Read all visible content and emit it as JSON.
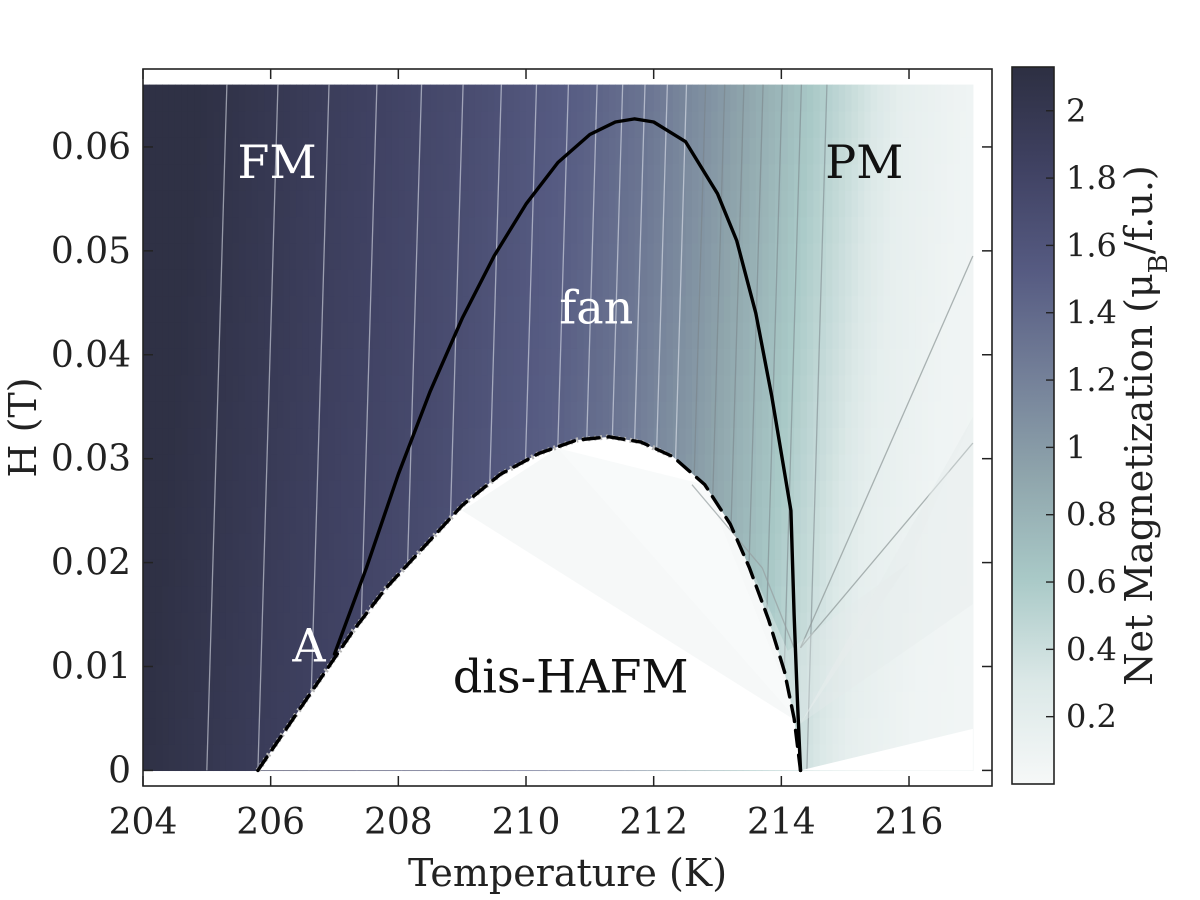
{
  "chart_data": {
    "type": "heatmap",
    "title": "",
    "xlabel": "Temperature (K)",
    "ylabel": "H (T)",
    "xlim": [
      204,
      217.3
    ],
    "ylim": [
      -0.0015,
      0.0675
    ],
    "data_extent": {
      "x": [
        204,
        217
      ],
      "y": [
        0,
        0.066
      ]
    },
    "x_ticks": [
      204,
      206,
      208,
      210,
      212,
      214,
      216
    ],
    "x_tick_labels": [
      "204",
      "206",
      "208",
      "210",
      "212",
      "214",
      "216"
    ],
    "y_ticks": [
      0,
      0.01,
      0.02,
      0.03,
      0.04,
      0.05,
      0.06
    ],
    "y_tick_labels": [
      "0",
      "0.01",
      "0.02",
      "0.03",
      "0.04",
      "0.05",
      "0.06"
    ],
    "grid": false,
    "colorbar": {
      "label": "Net Magnetization (μ",
      "label_sub": "B",
      "label_tail": "/f.u.)",
      "range": [
        0,
        2.13
      ],
      "ticks": [
        0.2,
        0.4,
        0.6,
        0.8,
        1,
        1.2,
        1.4,
        1.6,
        1.8,
        2
      ],
      "tick_labels": [
        "0.2",
        "0.4",
        "0.6",
        "0.8",
        "1",
        "1.2",
        "1.4",
        "1.6",
        "1.8",
        "2"
      ],
      "colormap": [
        "#f6f8f8",
        "#dbe8e7",
        "#a9c9c7",
        "#8fa5ac",
        "#737f98",
        "#565b82",
        "#404263",
        "#2d2f42"
      ]
    },
    "magnetization_model": {
      "T_points": [
        204,
        206,
        208,
        210,
        211,
        212,
        213,
        214,
        215,
        216,
        217
      ],
      "M_at_zero_field": [
        2.1,
        1.9,
        1.72,
        1.48,
        1.3,
        1.05,
        0.78,
        0.48,
        0.18,
        0.08,
        0.05
      ],
      "field_slope_K_per_T": 14
    },
    "regions": [
      {
        "name": "FM",
        "label": "FM",
        "x": 206.1,
        "y": 0.057,
        "color": "#ffffff"
      },
      {
        "name": "PM",
        "label": "PM",
        "x": 215.3,
        "y": 0.057,
        "color": "#111111"
      },
      {
        "name": "fan",
        "label": "fan",
        "x": 211.1,
        "y": 0.043,
        "color": "#ffffff"
      },
      {
        "name": "dis-HAFM",
        "label": "dis-HAFM",
        "x": 210.7,
        "y": 0.0075,
        "color": "#111111"
      },
      {
        "name": "A",
        "label": "A",
        "x": 206.6,
        "y": 0.0105,
        "color": "#ffffff"
      }
    ],
    "series": [
      {
        "id": "fan-boundary",
        "style": "solid",
        "color": "#000000",
        "points": [
          [
            207.0,
            0.0112
          ],
          [
            207.5,
            0.0195
          ],
          [
            208.0,
            0.0285
          ],
          [
            208.5,
            0.0365
          ],
          [
            209.0,
            0.0435
          ],
          [
            209.5,
            0.0495
          ],
          [
            210.0,
            0.0545
          ],
          [
            210.5,
            0.0585
          ],
          [
            211.0,
            0.0612
          ],
          [
            211.4,
            0.0624
          ],
          [
            211.7,
            0.0627
          ],
          [
            212.0,
            0.0624
          ],
          [
            212.5,
            0.0605
          ],
          [
            213.0,
            0.0555
          ],
          [
            213.3,
            0.051
          ],
          [
            213.6,
            0.044
          ],
          [
            213.85,
            0.036
          ],
          [
            214.0,
            0.0305
          ],
          [
            214.15,
            0.025
          ],
          [
            214.2,
            0.015
          ],
          [
            214.25,
            0.007
          ],
          [
            214.3,
            0.0
          ]
        ]
      },
      {
        "id": "hafm-boundary",
        "style": "dashed",
        "color": "#000000",
        "points": [
          [
            205.8,
            0.0
          ],
          [
            206.3,
            0.0045
          ],
          [
            206.8,
            0.009
          ],
          [
            207.3,
            0.0135
          ],
          [
            207.8,
            0.0175
          ],
          [
            208.4,
            0.0215
          ],
          [
            209.0,
            0.0255
          ],
          [
            209.6,
            0.0285
          ],
          [
            210.2,
            0.0305
          ],
          [
            210.8,
            0.0318
          ],
          [
            211.3,
            0.0321
          ],
          [
            211.8,
            0.0316
          ],
          [
            212.3,
            0.0302
          ],
          [
            212.8,
            0.0275
          ],
          [
            213.2,
            0.0237
          ],
          [
            213.5,
            0.0195
          ],
          [
            213.8,
            0.0145
          ],
          [
            214.05,
            0.0095
          ],
          [
            214.2,
            0.005
          ],
          [
            214.3,
            0.0
          ]
        ]
      }
    ]
  }
}
